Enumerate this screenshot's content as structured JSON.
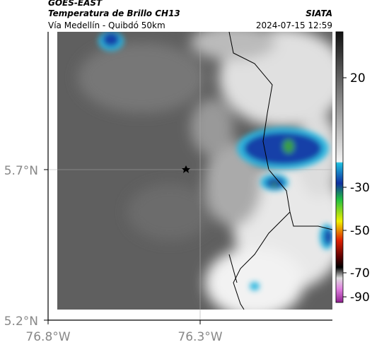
{
  "header": {
    "source": "GOES-EAST",
    "title": "Temperatura de Brillo CH13",
    "subtitle": "Vía Medellín - Quibdó 50km",
    "org": "SIATA",
    "datetime": "2024-07-15 12:59"
  },
  "map": {
    "lat_ticks": [
      "5.7°N",
      "5.2°N"
    ],
    "lon_ticks": [
      "76.8°W",
      "76.3°W"
    ]
  },
  "colorbar": {
    "ticks": [
      20,
      -30,
      -50,
      -70,
      -90
    ]
  }
}
